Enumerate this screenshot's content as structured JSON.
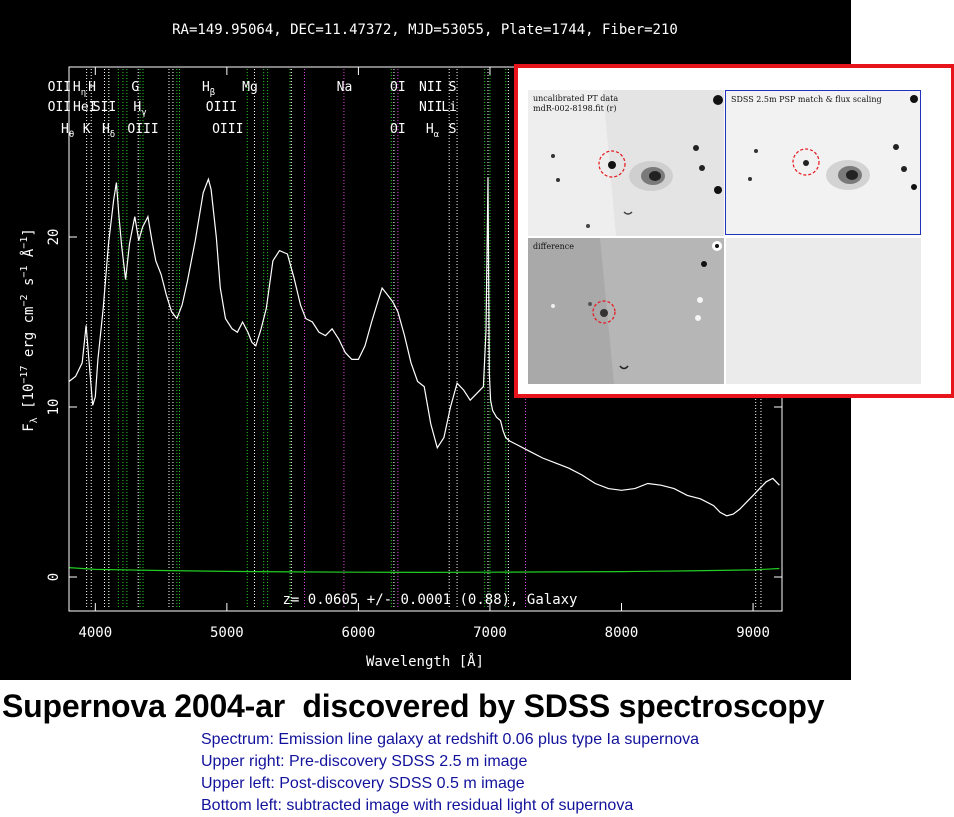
{
  "header_text": "RA=149.95064, DEC=11.47372, MJD=53055, Plate=1744, Fiber=210",
  "chart_data": {
    "type": "line",
    "xlabel": "Wavelength [Å]",
    "ylabel_parts": {
      "f": "F",
      "lambda": "λ",
      "open": " [10",
      "exp17": "−17",
      "erg": " erg cm",
      "exp2": "−2",
      "s": " s",
      "exp1": "−1",
      "A": " Å",
      "expA": "−1",
      "close": "]"
    },
    "xlim": [
      3800,
      9220
    ],
    "ylim": [
      -2,
      30
    ],
    "xticks": [
      4000,
      5000,
      6000,
      7000,
      8000,
      9000
    ],
    "yticks": [
      0,
      10,
      20
    ],
    "annotation": "z=  0.0605 +/-  0.0001 (0.88), Galaxy",
    "series": [
      {
        "color": "#ffffff",
        "x": [
          3800,
          3850,
          3900,
          3930,
          3960,
          3980,
          4000,
          4020,
          4060,
          4100,
          4140,
          4160,
          4180,
          4200,
          4230,
          4260,
          4300,
          4330,
          4360,
          4400,
          4430,
          4460,
          4500,
          4540,
          4580,
          4620,
          4660,
          4700,
          4760,
          4820,
          4860,
          4880,
          4920,
          4950,
          4990,
          5040,
          5080,
          5120,
          5160,
          5190,
          5220,
          5260,
          5300,
          5350,
          5400,
          5460,
          5510,
          5560,
          5600,
          5650,
          5700,
          5750,
          5800,
          5850,
          5900,
          5950,
          6000,
          6050,
          6100,
          6140,
          6180,
          6220,
          6260,
          6300,
          6350,
          6400,
          6450,
          6500,
          6550,
          6600,
          6650,
          6700,
          6750,
          6800,
          6850,
          6900,
          6950,
          6970,
          6985,
          6995,
          7005,
          7020,
          7050,
          7080,
          7100,
          7120,
          7150,
          7200,
          7300,
          7400,
          7500,
          7600,
          7700,
          7800,
          7900,
          8000,
          8100,
          8200,
          8300,
          8400,
          8500,
          8600,
          8700,
          8750,
          8800,
          8850,
          8900,
          8950,
          9000,
          9050,
          9100,
          9150,
          9200
        ],
        "y": [
          11.5,
          11.8,
          12.6,
          14.8,
          12.0,
          10.1,
          10.6,
          12.8,
          15.8,
          19.6,
          22.2,
          23.2,
          21.2,
          19.5,
          17.5,
          19.6,
          21.2,
          19.8,
          20.6,
          21.2,
          19.8,
          18.6,
          17.8,
          16.6,
          15.6,
          15.2,
          16.0,
          17.4,
          19.8,
          22.6,
          23.4,
          22.8,
          20.0,
          17.0,
          15.2,
          14.6,
          14.4,
          15.0,
          14.4,
          13.8,
          13.6,
          14.6,
          15.8,
          18.6,
          19.2,
          19.0,
          17.6,
          16.0,
          15.2,
          15.0,
          14.4,
          14.2,
          14.6,
          14.0,
          13.2,
          12.8,
          12.8,
          13.6,
          15.0,
          16.0,
          17.0,
          16.6,
          16.2,
          15.6,
          14.2,
          12.6,
          11.5,
          11.2,
          9.0,
          7.6,
          8.2,
          10.0,
          11.4,
          11.0,
          10.4,
          10.8,
          11.2,
          14.5,
          23.5,
          12.0,
          10.4,
          9.8,
          9.4,
          9.2,
          8.6,
          8.2,
          8.0,
          7.8,
          7.4,
          7.0,
          6.7,
          6.4,
          6.0,
          5.5,
          5.2,
          5.1,
          5.2,
          5.5,
          5.4,
          5.2,
          4.8,
          4.6,
          4.2,
          3.8,
          3.6,
          3.7,
          4.0,
          4.4,
          4.8,
          5.2,
          5.6,
          5.8,
          5.4
        ]
      },
      {
        "color": "#22cc22",
        "x": [
          3800,
          4000,
          4500,
          5000,
          5500,
          6000,
          6500,
          7000,
          7500,
          8000,
          8500,
          9000,
          9200
        ],
        "y": [
          0.55,
          0.45,
          0.38,
          0.33,
          0.3,
          0.28,
          0.27,
          0.28,
          0.3,
          0.32,
          0.36,
          0.42,
          0.5
        ]
      }
    ],
    "line_markers": [
      {
        "wl": 3727,
        "color": "#22cc22"
      },
      {
        "wl": 3934,
        "color": "#ffffff"
      },
      {
        "wl": 3969,
        "color": "#ffffff"
      },
      {
        "wl": 4102,
        "color": "#22cc22"
      },
      {
        "wl": 4070,
        "color": "#ffffff"
      },
      {
        "wl": 4103,
        "color": "#ffffff"
      },
      {
        "wl": 4175,
        "color": "#22cc22"
      },
      {
        "wl": 4210,
        "color": "#22cc22"
      },
      {
        "wl": 4240,
        "color": "#22cc22"
      },
      {
        "wl": 4326,
        "color": "#ffffff"
      },
      {
        "wl": 4340,
        "color": "#22cc22"
      },
      {
        "wl": 4363,
        "color": "#22cc22"
      },
      {
        "wl": 4560,
        "color": "#ffffff"
      },
      {
        "wl": 4590,
        "color": "#ffffff"
      },
      {
        "wl": 4620,
        "color": "#22cc22"
      },
      {
        "wl": 4640,
        "color": "#22cc22"
      },
      {
        "wl": 5155,
        "color": "#22cc22"
      },
      {
        "wl": 5210,
        "color": "#ffffff"
      },
      {
        "wl": 5280,
        "color": "#22cc22"
      },
      {
        "wl": 5310,
        "color": "#22cc22"
      },
      {
        "wl": 5480,
        "color": "#22cc22"
      },
      {
        "wl": 5490,
        "color": "#ffffff"
      },
      {
        "wl": 5590,
        "color": "#e040e0"
      },
      {
        "wl": 5890,
        "color": "#e040e0"
      },
      {
        "wl": 6250,
        "color": "#22cc22"
      },
      {
        "wl": 6270,
        "color": "#ffffff"
      },
      {
        "wl": 6300,
        "color": "#e040e0"
      },
      {
        "wl": 6690,
        "color": "#ffffff"
      },
      {
        "wl": 6750,
        "color": "#ffffff"
      },
      {
        "wl": 6960,
        "color": "#22cc22"
      },
      {
        "wl": 6985,
        "color": "#ffffff"
      },
      {
        "wl": 7000,
        "color": "#22cc22"
      },
      {
        "wl": 7120,
        "color": "#22cc22"
      },
      {
        "wl": 7140,
        "color": "#ffffff"
      },
      {
        "wl": 7270,
        "color": "#e040e0"
      },
      {
        "wl": 9020,
        "color": "#ffffff"
      },
      {
        "wl": 9060,
        "color": "#ffffff"
      }
    ],
    "line_labels": [
      {
        "text": "OII",
        "wl": 3727,
        "row": 1
      },
      {
        "text": "H",
        "wl": 3880,
        "row": 1,
        "sub": "η"
      },
      {
        "text": "H",
        "wl": 3975,
        "row": 1
      },
      {
        "text": "OII",
        "wl": 3727,
        "row": 2
      },
      {
        "text": "HeI",
        "wl": 3920,
        "row": 2
      },
      {
        "text": "SII",
        "wl": 4070,
        "row": 2
      },
      {
        "text": "H",
        "wl": 3790,
        "row": 3,
        "sub": "θ"
      },
      {
        "text": "K",
        "wl": 3934,
        "row": 3
      },
      {
        "text": "H",
        "wl": 4101,
        "row": 3,
        "sub": "δ"
      },
      {
        "text": "G",
        "wl": 4304,
        "row": 1
      },
      {
        "text": "H",
        "wl": 4340,
        "row": 2,
        "sub": "γ"
      },
      {
        "text": "OIII",
        "wl": 4363,
        "row": 3
      },
      {
        "text": "H",
        "wl": 4861,
        "row": 1,
        "sub": "β"
      },
      {
        "text": "OIII",
        "wl": 4959,
        "row": 2
      },
      {
        "text": "OIII",
        "wl": 5007,
        "row": 3
      },
      {
        "text": "Mg",
        "wl": 5176,
        "row": 1
      },
      {
        "text": "Na",
        "wl": 5894,
        "row": 1
      },
      {
        "text": "OI",
        "wl": 6300,
        "row": 1
      },
      {
        "text": "OI",
        "wl": 6300,
        "row": 3
      },
      {
        "text": "NII",
        "wl": 6550,
        "row": 1
      },
      {
        "text": "NII",
        "wl": 6550,
        "row": 2
      },
      {
        "text": "H",
        "wl": 6563,
        "row": 3,
        "sub": "α"
      },
      {
        "text": "S",
        "wl": 6716,
        "row": 1
      },
      {
        "text": "Li",
        "wl": 6690,
        "row": 2
      },
      {
        "text": "S",
        "wl": 6716,
        "row": 3
      }
    ]
  },
  "inset": {
    "border_color": "#e8141b",
    "upper_left_label": "uncalibrated PT data\nmdR-002-8198.fit (r)",
    "upper_right_label": "SDSS 2.5m PSP match & flux scaling",
    "lower_left_label": "difference"
  },
  "headline": "Supernova 2004-ar  discovered by SDSS spectroscopy",
  "notes": [
    "Spectrum: Emission line galaxy at redshift 0.06 plus type Ia supernova",
    "Upper right: Pre-discovery SDSS 2.5 m image",
    "Upper left: Post-discovery SDSS 0.5 m image",
    "Bottom left: subtracted image with residual light of supernova"
  ]
}
